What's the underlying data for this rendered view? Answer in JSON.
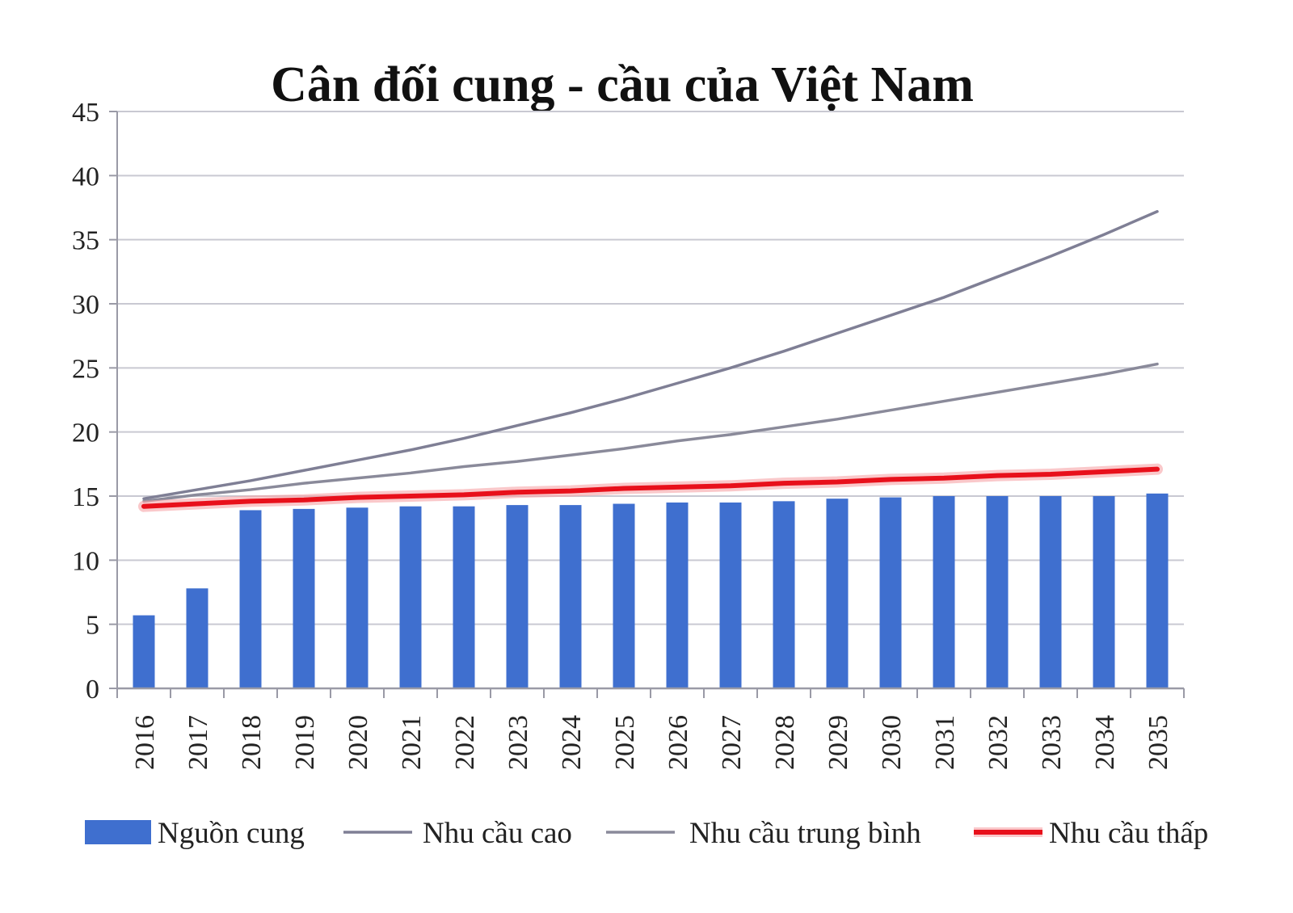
{
  "chart_data": {
    "type": "bar",
    "title": "Cân đối cung - cầu của Việt Nam",
    "xlabel": "",
    "ylabel": "",
    "ylim": [
      0,
      45
    ],
    "yticks": [
      0,
      5,
      10,
      15,
      20,
      25,
      30,
      35,
      40,
      45
    ],
    "grid": true,
    "legend_position": "bottom",
    "categories": [
      "2016",
      "2017",
      "2018",
      "2019",
      "2020",
      "2021",
      "2022",
      "2023",
      "2024",
      "2025",
      "2026",
      "2027",
      "2028",
      "2029",
      "2030",
      "2031",
      "2032",
      "2033",
      "2034",
      "2035"
    ],
    "series": [
      {
        "name": "Nguồn cung",
        "kind": "bar",
        "color": "#3f6fcf",
        "values": [
          5.7,
          7.8,
          13.9,
          14.0,
          14.1,
          14.2,
          14.2,
          14.3,
          14.3,
          14.4,
          14.5,
          14.5,
          14.6,
          14.8,
          14.9,
          15.0,
          15.0,
          15.0,
          15.0,
          15.2
        ]
      },
      {
        "name": "Nhu cầu cao",
        "kind": "line",
        "color": "#7f7f95",
        "values": [
          14.8,
          15.5,
          16.2,
          17.0,
          17.8,
          18.6,
          19.5,
          20.5,
          21.5,
          22.6,
          23.8,
          25.0,
          26.3,
          27.7,
          29.1,
          30.5,
          32.1,
          33.7,
          35.4,
          37.2
        ]
      },
      {
        "name": "Nhu cầu trung bình",
        "kind": "line",
        "color": "#8a8a9a",
        "values": [
          14.6,
          15.1,
          15.5,
          16.0,
          16.4,
          16.8,
          17.3,
          17.7,
          18.2,
          18.7,
          19.3,
          19.8,
          20.4,
          21.0,
          21.7,
          22.4,
          23.1,
          23.8,
          24.5,
          25.3
        ]
      },
      {
        "name": "Nhu cầu thấp",
        "kind": "line",
        "color": "#e8101b",
        "values": [
          14.2,
          14.4,
          14.6,
          14.7,
          14.9,
          15.0,
          15.1,
          15.3,
          15.4,
          15.6,
          15.7,
          15.8,
          16.0,
          16.1,
          16.3,
          16.4,
          16.6,
          16.7,
          16.9,
          17.1
        ]
      }
    ]
  }
}
